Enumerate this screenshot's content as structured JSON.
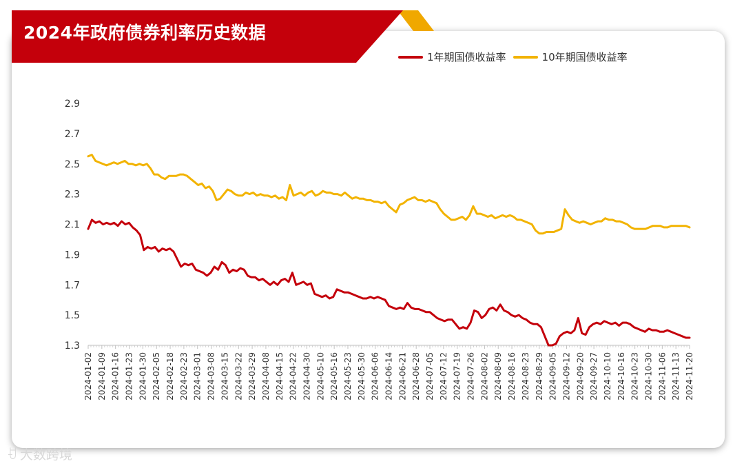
{
  "title": "2024年政府债券利率历史数据",
  "watermark": "大数跨境",
  "colors": {
    "banner_red": "#c4000b",
    "banner_gold": "#f0a800",
    "series1": "#c4000b",
    "series2": "#f2b300",
    "axis": "#bfbfbf",
    "text": "#333333"
  },
  "legend": [
    {
      "label": "1年期国债收益率",
      "color": "#c4000b"
    },
    {
      "label": "10年期国债收益率",
      "color": "#f2b300"
    }
  ],
  "chart_data": {
    "type": "line",
    "ylim": [
      1.3,
      2.9
    ],
    "yticks": [
      "1.3",
      "1.5",
      "1.7",
      "1.9",
      "2.1",
      "2.3",
      "2.5",
      "2.7",
      "2.9"
    ],
    "grid": false,
    "legend_position": "top-right",
    "xtick_labels": [
      "2024-01-02",
      "2024-01-09",
      "2024-01-16",
      "2024-01-23",
      "2024-01-30",
      "2024-02-05",
      "2024-02-18",
      "2024-02-23",
      "2024-03-01",
      "2024-03-08",
      "2024-03-15",
      "2024-03-22",
      "2024-03-29",
      "2024-04-08",
      "2024-04-15",
      "2024-04-22",
      "2024-04-30",
      "2024-05-10",
      "2024-05-16",
      "2024-05-23",
      "2024-05-30",
      "2024-06-06",
      "2024-06-14",
      "2024-06-21",
      "2024-06-28",
      "2024-07-05",
      "2024-07-12",
      "2024-07-19",
      "2024-07-26",
      "2024-08-02",
      "2024-08-09",
      "2024-08-16",
      "2024-08-23",
      "2024-08-29",
      "2024-09-05",
      "2024-09-12",
      "2024-09-20",
      "2024-09-27",
      "2024-10-10",
      "2024-10-16",
      "2024-10-23",
      "2024-10-30",
      "2024-11-06",
      "2024-11-13",
      "2024-11-20"
    ],
    "series": [
      {
        "name": "1年期国债收益率",
        "color": "#c4000b",
        "values": [
          2.07,
          2.13,
          2.11,
          2.12,
          2.1,
          2.11,
          2.1,
          2.11,
          2.09,
          2.12,
          2.1,
          2.11,
          2.08,
          2.06,
          2.03,
          1.93,
          1.95,
          1.94,
          1.95,
          1.92,
          1.94,
          1.93,
          1.94,
          1.92,
          1.87,
          1.82,
          1.84,
          1.83,
          1.84,
          1.8,
          1.79,
          1.78,
          1.76,
          1.78,
          1.82,
          1.8,
          1.85,
          1.83,
          1.78,
          1.8,
          1.79,
          1.81,
          1.8,
          1.76,
          1.75,
          1.75,
          1.73,
          1.74,
          1.72,
          1.7,
          1.72,
          1.7,
          1.73,
          1.74,
          1.72,
          1.78,
          1.7,
          1.71,
          1.72,
          1.7,
          1.71,
          1.64,
          1.63,
          1.62,
          1.63,
          1.61,
          1.62,
          1.67,
          1.66,
          1.65,
          1.65,
          1.64,
          1.63,
          1.62,
          1.61,
          1.61,
          1.62,
          1.61,
          1.62,
          1.61,
          1.6,
          1.56,
          1.55,
          1.54,
          1.55,
          1.54,
          1.58,
          1.55,
          1.54,
          1.54,
          1.53,
          1.52,
          1.52,
          1.5,
          1.48,
          1.47,
          1.46,
          1.47,
          1.47,
          1.44,
          1.41,
          1.42,
          1.41,
          1.45,
          1.53,
          1.52,
          1.48,
          1.5,
          1.54,
          1.55,
          1.53,
          1.57,
          1.53,
          1.52,
          1.5,
          1.49,
          1.5,
          1.48,
          1.47,
          1.45,
          1.44,
          1.44,
          1.42,
          1.36,
          1.3,
          1.3,
          1.31,
          1.36,
          1.38,
          1.39,
          1.38,
          1.4,
          1.48,
          1.38,
          1.37,
          1.42,
          1.44,
          1.45,
          1.44,
          1.46,
          1.45,
          1.44,
          1.45,
          1.43,
          1.45,
          1.45,
          1.44,
          1.42,
          1.41,
          1.4,
          1.39,
          1.41,
          1.4,
          1.4,
          1.39,
          1.39,
          1.4,
          1.39,
          1.38,
          1.37,
          1.36,
          1.35,
          1.35
        ]
      },
      {
        "name": "10年期国债收益率",
        "color": "#f2b300",
        "values": [
          2.55,
          2.56,
          2.52,
          2.51,
          2.5,
          2.49,
          2.5,
          2.51,
          2.5,
          2.51,
          2.52,
          2.5,
          2.5,
          2.49,
          2.5,
          2.49,
          2.5,
          2.47,
          2.43,
          2.43,
          2.41,
          2.4,
          2.42,
          2.42,
          2.42,
          2.43,
          2.43,
          2.42,
          2.4,
          2.38,
          2.36,
          2.37,
          2.34,
          2.35,
          2.32,
          2.26,
          2.27,
          2.3,
          2.33,
          2.32,
          2.3,
          2.29,
          2.29,
          2.31,
          2.3,
          2.31,
          2.29,
          2.3,
          2.29,
          2.29,
          2.28,
          2.29,
          2.27,
          2.28,
          2.26,
          2.36,
          2.29,
          2.3,
          2.31,
          2.29,
          2.31,
          2.32,
          2.29,
          2.3,
          2.32,
          2.31,
          2.31,
          2.3,
          2.3,
          2.29,
          2.31,
          2.29,
          2.27,
          2.28,
          2.27,
          2.27,
          2.26,
          2.26,
          2.25,
          2.25,
          2.24,
          2.25,
          2.22,
          2.2,
          2.18,
          2.23,
          2.24,
          2.26,
          2.27,
          2.28,
          2.26,
          2.26,
          2.25,
          2.26,
          2.25,
          2.24,
          2.2,
          2.17,
          2.15,
          2.13,
          2.13,
          2.14,
          2.15,
          2.13,
          2.16,
          2.22,
          2.17,
          2.17,
          2.16,
          2.15,
          2.16,
          2.14,
          2.15,
          2.16,
          2.15,
          2.16,
          2.15,
          2.13,
          2.13,
          2.12,
          2.11,
          2.1,
          2.06,
          2.04,
          2.04,
          2.05,
          2.05,
          2.05,
          2.06,
          2.07,
          2.2,
          2.16,
          2.13,
          2.12,
          2.11,
          2.12,
          2.11,
          2.1,
          2.11,
          2.12,
          2.12,
          2.14,
          2.13,
          2.13,
          2.12,
          2.12,
          2.11,
          2.1,
          2.08,
          2.07,
          2.07,
          2.07,
          2.07,
          2.08,
          2.09,
          2.09,
          2.09,
          2.08,
          2.08,
          2.09,
          2.09,
          2.09,
          2.09,
          2.09,
          2.08
        ]
      }
    ]
  }
}
